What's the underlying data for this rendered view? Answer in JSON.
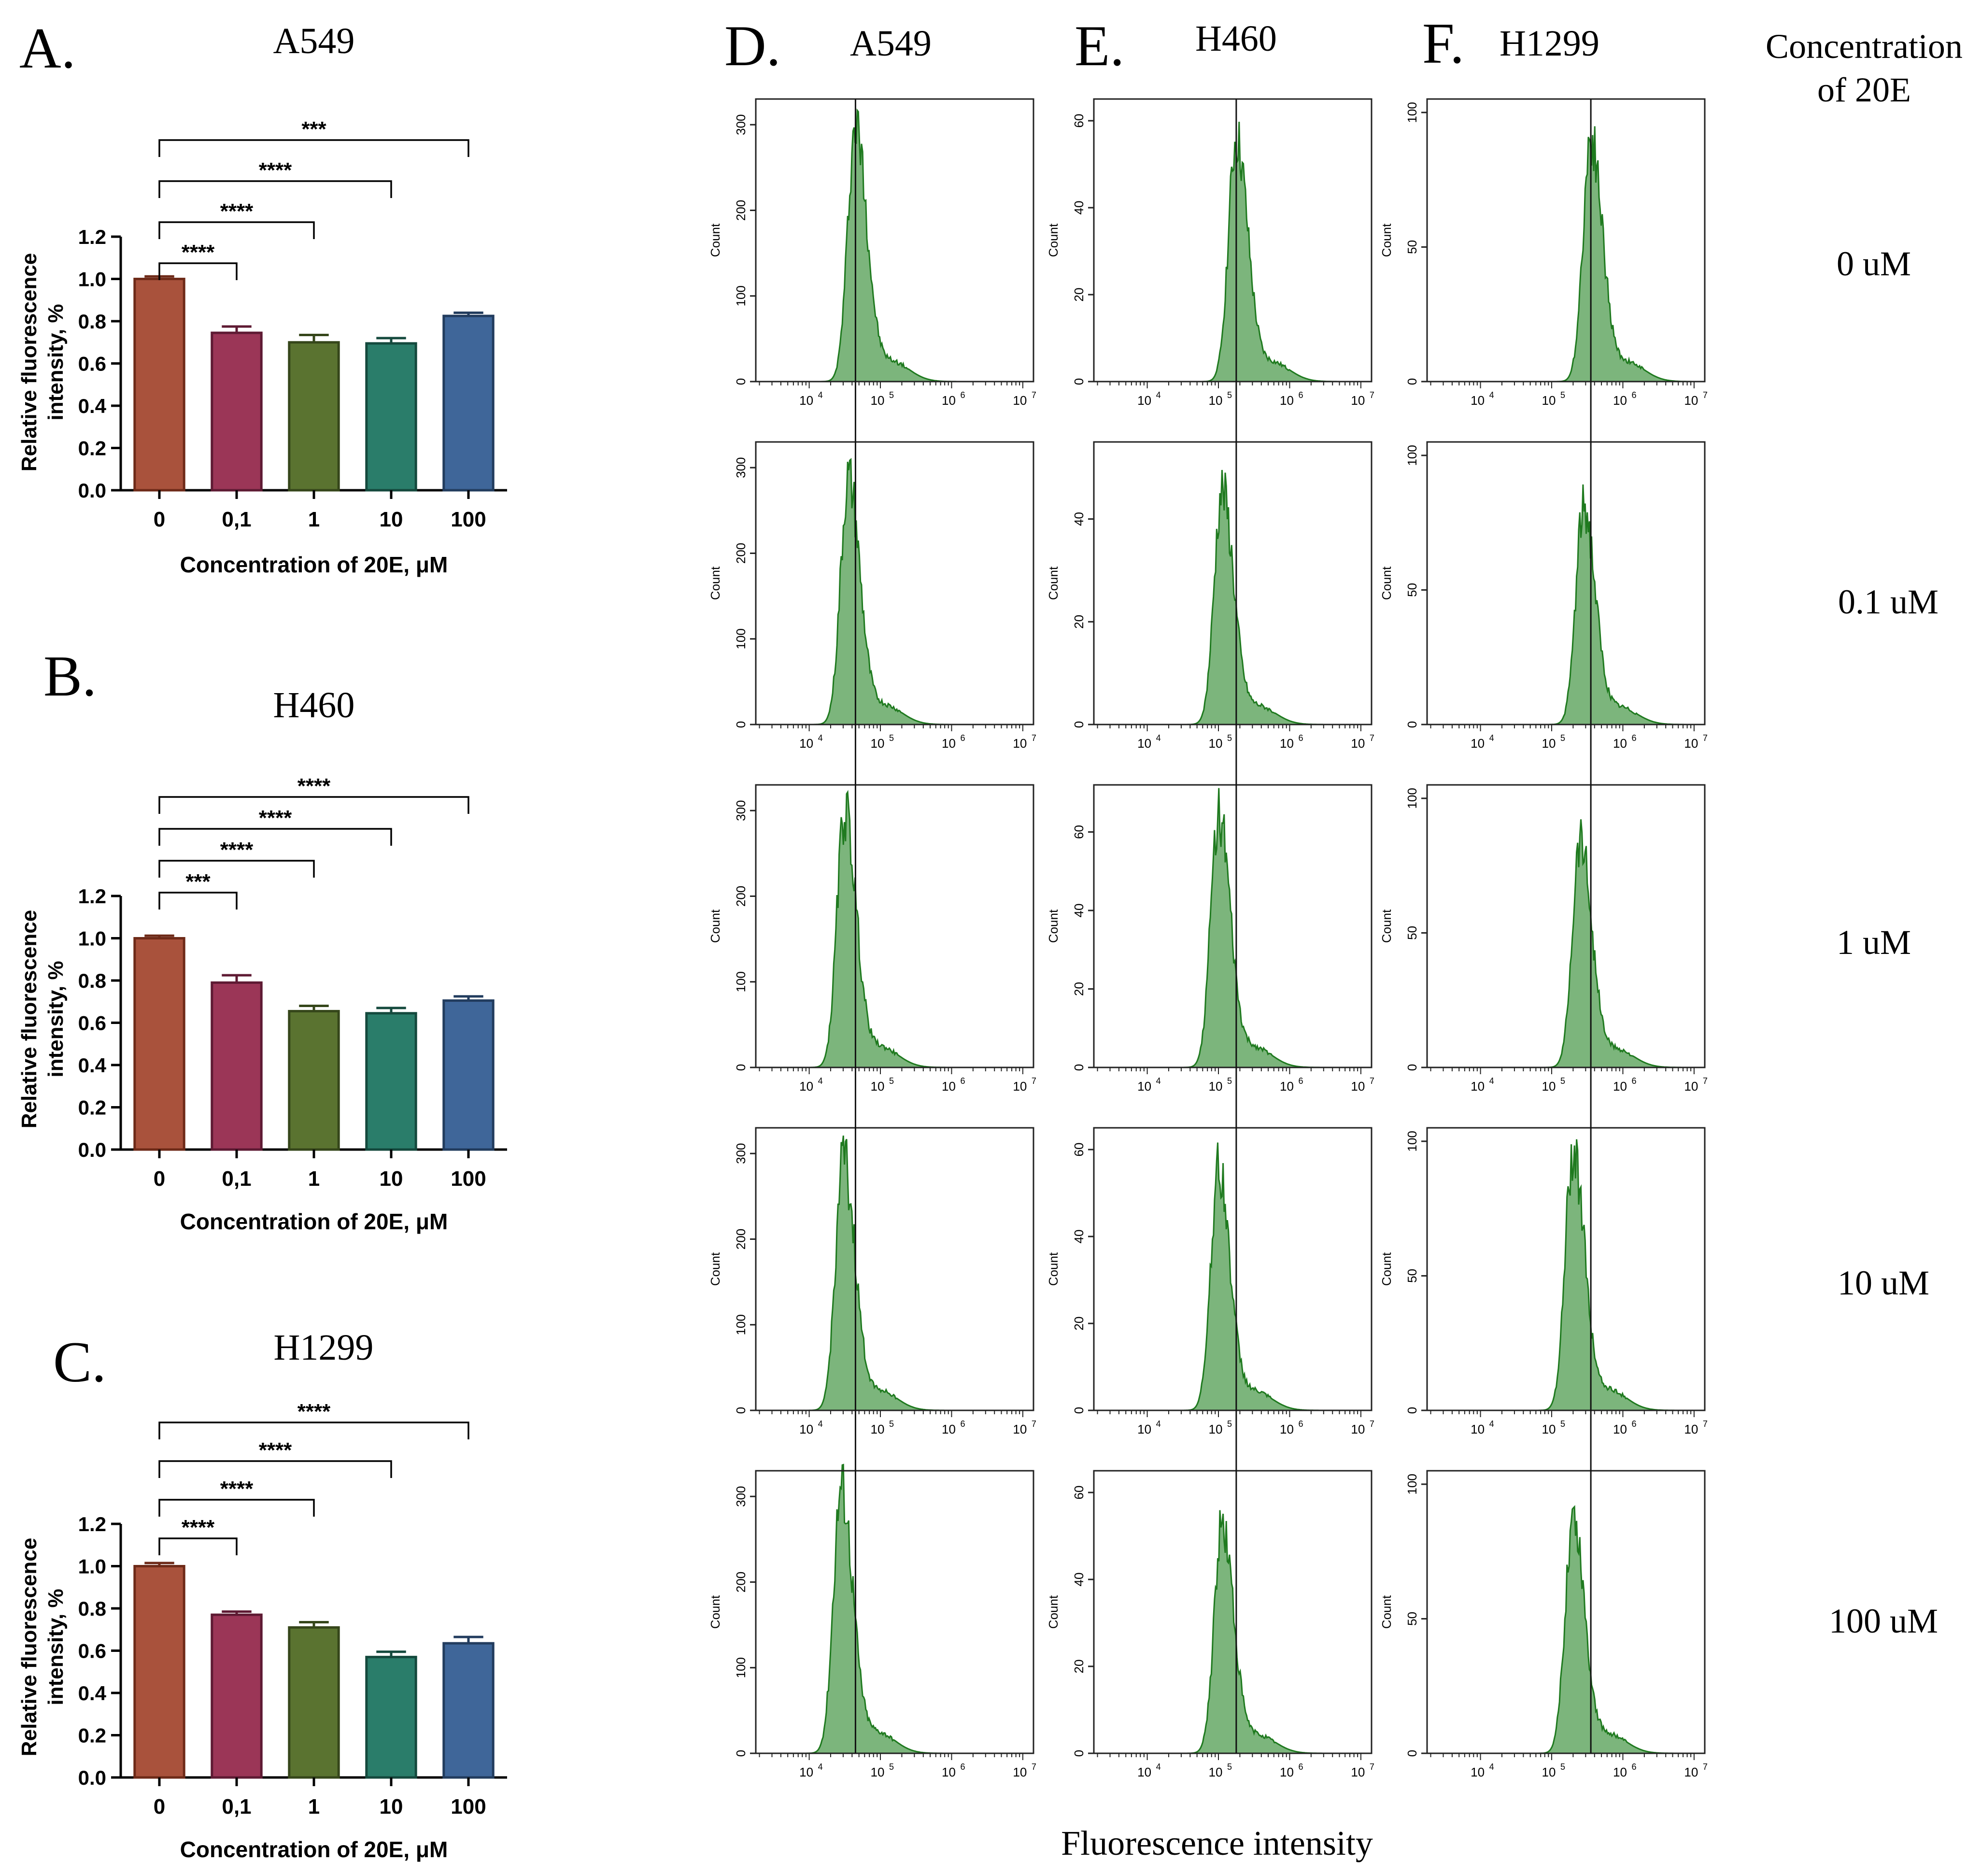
{
  "figure": {
    "bar_panels": [
      {
        "letter": "A.",
        "title": "A549",
        "chart_data": {
          "type": "bar",
          "categories": [
            "0",
            "0,1",
            "1",
            "10",
            "100"
          ],
          "values": [
            1.0,
            0.745,
            0.7,
            0.695,
            0.825
          ],
          "errors": [
            0.012,
            0.03,
            0.035,
            0.025,
            0.015
          ],
          "ylim": [
            0,
            1.2
          ],
          "yticks": [
            "0.0",
            "0.2",
            "0.4",
            "0.6",
            "0.8",
            "1.0",
            "1.2"
          ],
          "ylabel_line1": "Relative fluorescence",
          "ylabel_line2": "intensity, %",
          "xlabel": "Concentration of 20E, μM",
          "significance": [
            {
              "from": 0,
              "to": 1,
              "label": "****"
            },
            {
              "from": 0,
              "to": 2,
              "label": "****"
            },
            {
              "from": 0,
              "to": 3,
              "label": "****"
            },
            {
              "from": 0,
              "to": 4,
              "label": "***"
            }
          ]
        }
      },
      {
        "letter": "B.",
        "title": "H460",
        "chart_data": {
          "type": "bar",
          "categories": [
            "0",
            "0,1",
            "1",
            "10",
            "100"
          ],
          "values": [
            1.0,
            0.79,
            0.655,
            0.645,
            0.705
          ],
          "errors": [
            0.012,
            0.035,
            0.025,
            0.025,
            0.02
          ],
          "ylim": [
            0,
            1.2
          ],
          "yticks": [
            "0.0",
            "0.2",
            "0.4",
            "0.6",
            "0.8",
            "1.0",
            "1.2"
          ],
          "ylabel_line1": "Relative fluorescence",
          "ylabel_line2": "intensity, %",
          "xlabel": "Concentration of 20E, μM",
          "significance": [
            {
              "from": 0,
              "to": 1,
              "label": "***"
            },
            {
              "from": 0,
              "to": 2,
              "label": "****"
            },
            {
              "from": 0,
              "to": 3,
              "label": "****"
            },
            {
              "from": 0,
              "to": 4,
              "label": "****"
            }
          ]
        }
      },
      {
        "letter": "C.",
        "title": "H1299",
        "chart_data": {
          "type": "bar",
          "categories": [
            "0",
            "0,1",
            "1",
            "10",
            "100"
          ],
          "values": [
            1.0,
            0.77,
            0.71,
            0.57,
            0.635
          ],
          "errors": [
            0.015,
            0.015,
            0.025,
            0.025,
            0.03
          ],
          "ylim": [
            0,
            1.2
          ],
          "yticks": [
            "0.0",
            "0.2",
            "0.4",
            "0.6",
            "0.8",
            "1.0",
            "1.2"
          ],
          "ylabel_line1": "Relative fluorescence",
          "ylabel_line2": "intensity, %",
          "xlabel": "Concentration of 20E, μM",
          "significance": [
            {
              "from": 0,
              "to": 1,
              "label": "****"
            },
            {
              "from": 0,
              "to": 2,
              "label": "****"
            },
            {
              "from": 0,
              "to": 3,
              "label": "****"
            },
            {
              "from": 0,
              "to": 4,
              "label": "****"
            }
          ]
        }
      }
    ],
    "bar_colors": {
      "fills": [
        "#a9523c",
        "#9b3657",
        "#5a7330",
        "#2a7d6a",
        "#3f6699"
      ],
      "strokes": [
        "#6e2a18",
        "#5e1a33",
        "#35461a",
        "#14493d",
        "#223c5e"
      ]
    },
    "histogram_columns": [
      {
        "letter": "D.",
        "title": "A549",
        "xticks": [
          "10",
          "10",
          "10",
          "10"
        ],
        "xtick_sup": [
          "4",
          "5",
          "6",
          "7"
        ],
        "ymax": [
          330,
          330,
          330,
          330,
          330
        ],
        "yticks": [
          [
            "0",
            "100",
            "200",
            "300"
          ],
          [
            "0",
            "100",
            "200",
            "300"
          ],
          [
            "0",
            "100",
            "200",
            "300"
          ],
          [
            "0",
            "100",
            "200",
            "300"
          ],
          [
            "0",
            "100",
            "200",
            "300"
          ]
        ],
        "peaks_log10": [
          4.65,
          4.55,
          4.5,
          4.48,
          4.45
        ],
        "peak_counts": [
          295,
          285,
          295,
          290,
          310
        ],
        "gate_log10": 4.65
      },
      {
        "letter": "E.",
        "title": "H460",
        "xticks": [
          "10",
          "10",
          "10",
          "10"
        ],
        "xtick_sup": [
          "4",
          "5",
          "6",
          "7"
        ],
        "ymax": [
          65,
          55,
          72,
          65,
          65
        ],
        "yticks": [
          [
            "0",
            "20",
            "40",
            "60"
          ],
          [
            "0",
            "20",
            "40"
          ],
          [
            "0",
            "20",
            "40",
            "60"
          ],
          [
            "0",
            "20",
            "40",
            "60"
          ],
          [
            "0",
            "20",
            "40",
            "60"
          ]
        ],
        "peaks_log10": [
          5.25,
          5.05,
          5.0,
          5.0,
          5.05
        ],
        "peak_counts": [
          55,
          45,
          64,
          55,
          52
        ],
        "gate_log10": 5.25
      },
      {
        "letter": "F.",
        "title": "H1299",
        "xticks": [
          "10",
          "10",
          "10",
          "10"
        ],
        "xtick_sup": [
          "4",
          "5",
          "6",
          "7"
        ],
        "ymax": [
          105,
          105,
          105,
          105,
          105
        ],
        "yticks": [
          [
            "0",
            "50",
            "100"
          ],
          [
            "0",
            "50",
            "100"
          ],
          [
            "0",
            "50",
            "100"
          ],
          [
            "0",
            "50",
            "100"
          ],
          [
            "0",
            "50",
            "100"
          ]
        ],
        "peaks_log10": [
          5.55,
          5.45,
          5.4,
          5.3,
          5.3
        ],
        "peak_counts": [
          90,
          80,
          85,
          95,
          88
        ],
        "gate_log10": 5.55
      }
    ],
    "hist_ylabel": "Count",
    "hist_color": "#5ba35b",
    "hist_edge": "#1f7a1f",
    "row_labels_header_line1": "Concentration",
    "row_labels_header_line2": "of 20E",
    "row_labels": [
      "0 uM",
      "0.1 uM",
      "1 uM",
      "10 uM",
      "100 uM"
    ],
    "hist_xlabel": "Fluorescence intensity"
  }
}
